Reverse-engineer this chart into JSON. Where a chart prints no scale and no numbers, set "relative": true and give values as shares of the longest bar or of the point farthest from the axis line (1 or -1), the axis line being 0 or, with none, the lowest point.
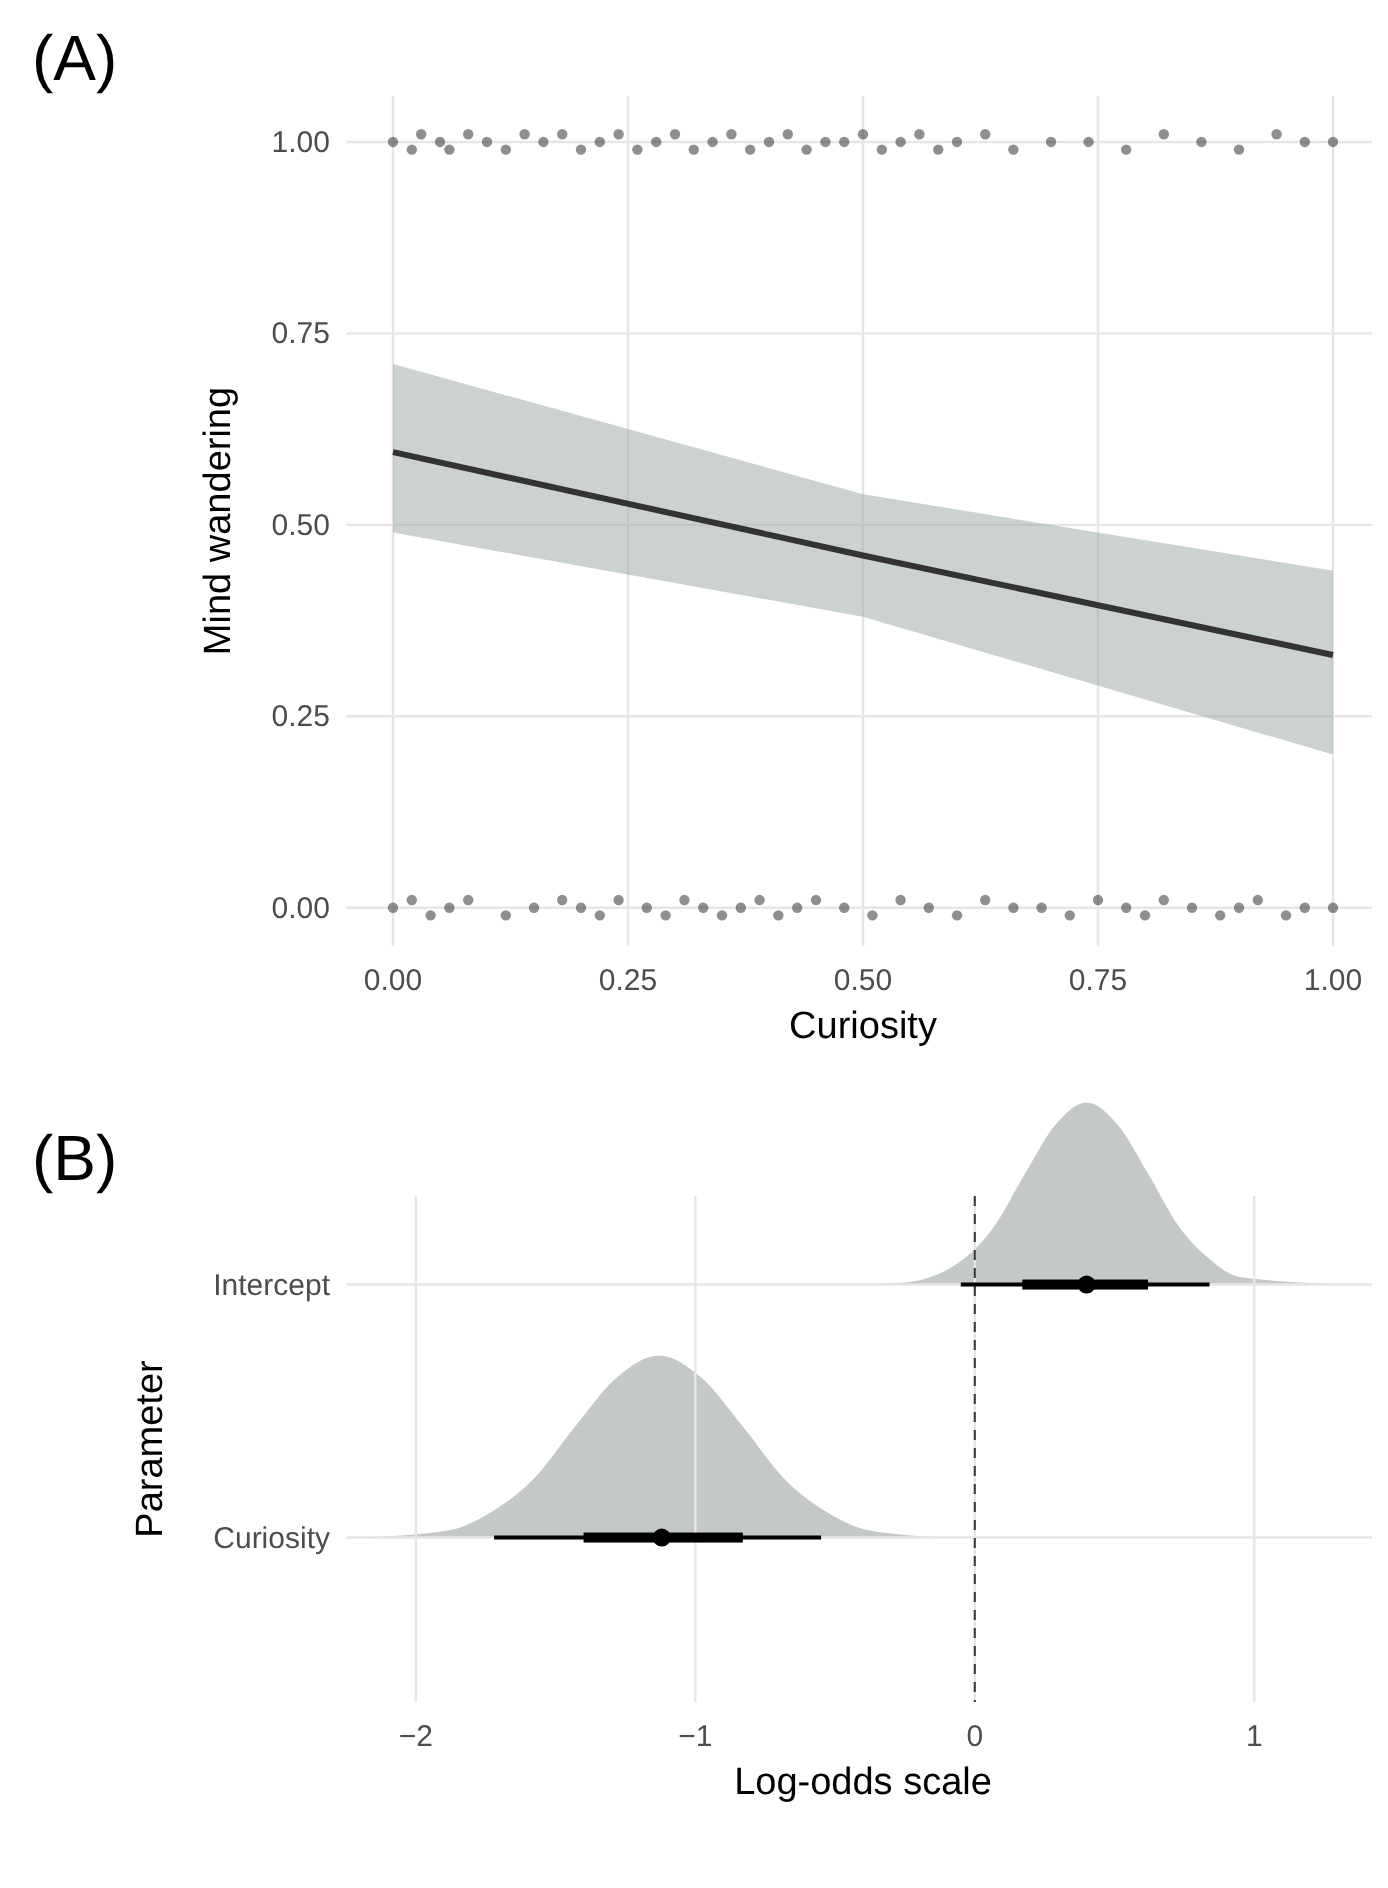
{
  "chart_data": [
    {
      "type": "scatter",
      "annotations": [
        "(A)"
      ],
      "xlabel": "Curiosity",
      "ylabel": "Mind wandering",
      "xlim": [
        -0.05,
        1.05
      ],
      "ylim": [
        -0.05,
        1.06
      ],
      "xticks": [
        {
          "value": 0,
          "label": "0.00"
        },
        {
          "value": 0.25,
          "label": "0.25"
        },
        {
          "value": 0.5,
          "label": "0.50"
        },
        {
          "value": 0.75,
          "label": "0.75"
        },
        {
          "value": 1,
          "label": "1.00"
        }
      ],
      "yticks": [
        {
          "value": 0,
          "label": "0.00"
        },
        {
          "value": 0.25,
          "label": "0.25"
        },
        {
          "value": 0.5,
          "label": "0.50"
        },
        {
          "value": 0.75,
          "label": "0.75"
        },
        {
          "value": 1,
          "label": "1.00"
        }
      ],
      "grid": true,
      "series": [
        {
          "type": "scatter",
          "color": "#333333",
          "x": [
            0.0,
            0.02,
            0.03,
            0.05,
            0.06,
            0.08,
            0.1,
            0.12,
            0.14,
            0.16,
            0.18,
            0.2,
            0.22,
            0.24,
            0.26,
            0.28,
            0.3,
            0.32,
            0.34,
            0.36,
            0.38,
            0.4,
            0.42,
            0.44,
            0.46,
            0.48,
            0.5,
            0.52,
            0.54,
            0.56,
            0.58,
            0.6,
            0.63,
            0.66,
            0.7,
            0.74,
            0.78,
            0.82,
            0.86,
            0.9,
            0.94,
            0.97,
            1.0
          ],
          "values": [
            1.0,
            0.99,
            1.01,
            1.0,
            0.99,
            1.01,
            1.0,
            0.99,
            1.01,
            1.0,
            1.01,
            0.99,
            1.0,
            1.01,
            0.99,
            1.0,
            1.01,
            0.99,
            1.0,
            1.01,
            0.99,
            1.0,
            1.01,
            0.99,
            1.0,
            1.0,
            1.01,
            0.99,
            1.0,
            1.01,
            0.99,
            1.0,
            1.01,
            0.99,
            1.0,
            1.0,
            0.99,
            1.01,
            1.0,
            0.99,
            1.01,
            1.0,
            1.0
          ]
        },
        {
          "type": "scatter",
          "color": "#333333",
          "x": [
            0.0,
            0.02,
            0.04,
            0.06,
            0.08,
            0.12,
            0.15,
            0.18,
            0.2,
            0.22,
            0.24,
            0.27,
            0.29,
            0.31,
            0.33,
            0.35,
            0.37,
            0.39,
            0.41,
            0.43,
            0.45,
            0.48,
            0.51,
            0.54,
            0.57,
            0.6,
            0.63,
            0.66,
            0.69,
            0.72,
            0.75,
            0.78,
            0.8,
            0.82,
            0.85,
            0.88,
            0.9,
            0.92,
            0.95,
            0.97,
            1.0
          ],
          "values": [
            0.0,
            0.01,
            -0.01,
            0.0,
            0.01,
            -0.01,
            0.0,
            0.01,
            0.0,
            -0.01,
            0.01,
            0.0,
            -0.01,
            0.01,
            0.0,
            -0.01,
            0.0,
            0.01,
            -0.01,
            0.0,
            0.01,
            0.0,
            -0.01,
            0.01,
            0.0,
            -0.01,
            0.01,
            0.0,
            0.0,
            -0.01,
            0.01,
            0.0,
            -0.01,
            0.01,
            0.0,
            -0.01,
            0.0,
            0.01,
            -0.01,
            0.0,
            0.0
          ]
        },
        {
          "type": "line",
          "color": "#333333",
          "x": [
            0,
            0.5,
            1
          ],
          "values": [
            0.595,
            0.46,
            0.33
          ],
          "lower": [
            0.49,
            0.38,
            0.2
          ],
          "upper": [
            0.71,
            0.54,
            0.44
          ]
        }
      ]
    },
    {
      "type": "box",
      "orientation": "horizontal",
      "annotations": [
        "(B)"
      ],
      "xlabel": "Log-odds scale",
      "ylabel": "Parameter",
      "categories": [
        "Intercept",
        "Curiosity"
      ],
      "xlim": [
        -2.25,
        1.45
      ],
      "xticks": [
        {
          "value": -2,
          "label": "−2"
        },
        {
          "value": -1,
          "label": "−1"
        },
        0,
        1
      ],
      "grid": true,
      "boxes": [
        {
          "low": -0.05,
          "q1": 0.17,
          "median": 0.4,
          "q3": 0.62,
          "high": 0.84
        },
        {
          "low": -1.72,
          "q1": -1.4,
          "median": -1.12,
          "q3": -0.83,
          "high": -0.55
        }
      ],
      "ref_lines": [
        {
          "axis": "x",
          "value": 0,
          "line_style": "dashed",
          "color": "#333333"
        }
      ]
    },
    {
      "type": "area",
      "relative": true,
      "xlim": [
        -2.25,
        1.45
      ],
      "series": [
        {
          "color": "#c4c8c8",
          "x": [
            -0.5,
            -0.26,
            -0.04,
            0.07,
            0.18,
            0.29,
            0.4,
            0.51,
            0.62,
            0.73,
            0.84,
            0.95,
            1.35
          ],
          "values": [
            0,
            0.01,
            0.14,
            0.32,
            0.61,
            0.88,
            1,
            0.88,
            0.61,
            0.32,
            0.14,
            0.04,
            0
          ]
        }
      ]
    },
    {
      "type": "area",
      "relative": true,
      "xlim": [
        -2.25,
        1.45
      ],
      "series": [
        {
          "color": "#c4c8c8",
          "x": [
            -2.2,
            -1.88,
            -1.73,
            -1.58,
            -1.43,
            -1.28,
            -1.13,
            -0.98,
            -0.83,
            -0.68,
            -0.53,
            -0.38,
            -0.1
          ],
          "values": [
            0,
            0.04,
            0.14,
            0.32,
            0.61,
            0.88,
            1,
            0.88,
            0.61,
            0.32,
            0.14,
            0.04,
            0
          ]
        }
      ]
    }
  ]
}
